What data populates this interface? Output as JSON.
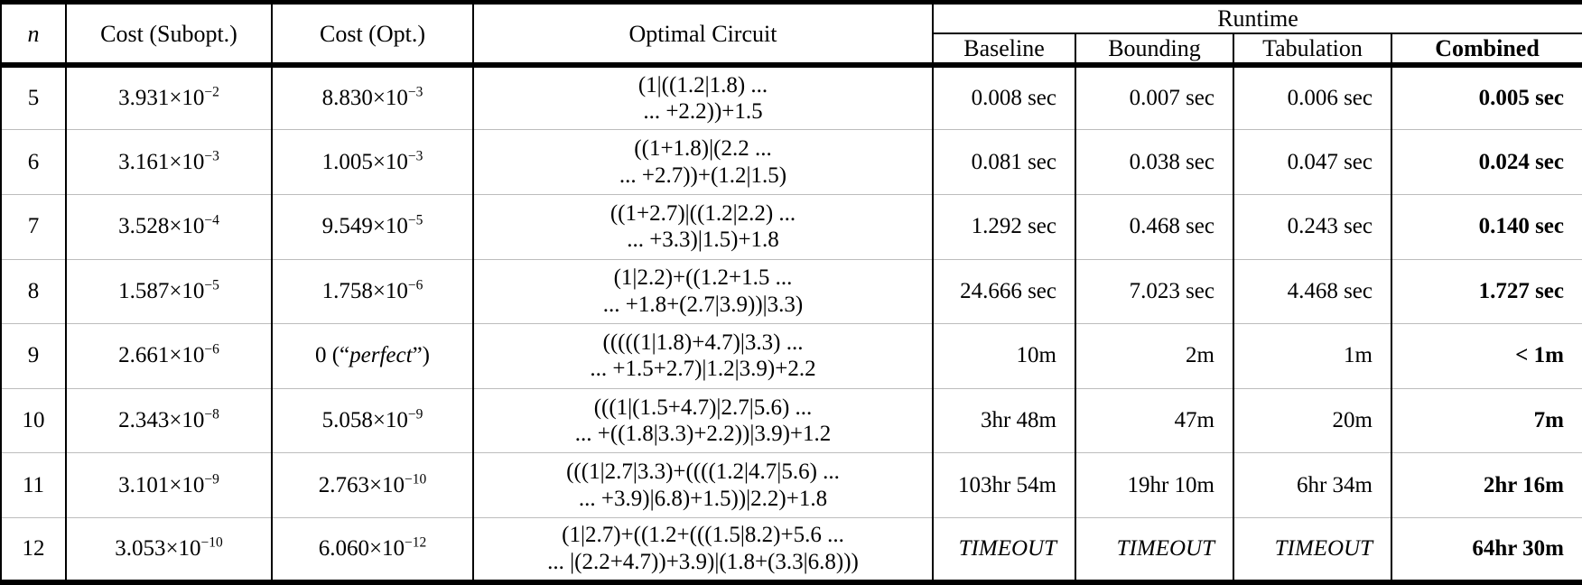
{
  "table": {
    "headers": {
      "n": "n",
      "cost_subopt": "Cost (Subopt.)",
      "cost_opt": "Cost (Opt.)",
      "optimal_circuit": "Optimal Circuit",
      "runtime_group": "Runtime",
      "runtime_columns": [
        "Baseline",
        "Bounding",
        "Tabulation",
        "Combined"
      ]
    },
    "rows": [
      {
        "n": "5",
        "cost_subopt": [
          {
            "text": "3.931×10"
          },
          {
            "text": "−2",
            "sup": true
          }
        ],
        "cost_opt": [
          {
            "text": "8.830×10"
          },
          {
            "text": "−3",
            "sup": true
          }
        ],
        "circuit": [
          "(1|((1.2|1.8) ...",
          "... +2.2))+1.5"
        ],
        "runtime": [
          "0.008 sec",
          "0.007 sec",
          "0.006 sec",
          "0.005 sec"
        ]
      },
      {
        "n": "6",
        "cost_subopt": [
          {
            "text": "3.161×10"
          },
          {
            "text": "−3",
            "sup": true
          }
        ],
        "cost_opt": [
          {
            "text": "1.005×10"
          },
          {
            "text": "−3",
            "sup": true
          }
        ],
        "circuit": [
          "((1+1.8)|(2.2 ...",
          "... +2.7))+(1.2|1.5)"
        ],
        "runtime": [
          "0.081 sec",
          "0.038 sec",
          "0.047 sec",
          "0.024 sec"
        ]
      },
      {
        "n": "7",
        "cost_subopt": [
          {
            "text": "3.528×10"
          },
          {
            "text": "−4",
            "sup": true
          }
        ],
        "cost_opt": [
          {
            "text": "9.549×10"
          },
          {
            "text": "−5",
            "sup": true
          }
        ],
        "circuit": [
          "((1+2.7)|((1.2|2.2) ...",
          "... +3.3)|1.5)+1.8"
        ],
        "runtime": [
          "1.292 sec",
          "0.468 sec",
          "0.243 sec",
          "0.140 sec"
        ]
      },
      {
        "n": "8",
        "cost_subopt": [
          {
            "text": "1.587×10"
          },
          {
            "text": "−5",
            "sup": true
          }
        ],
        "cost_opt": [
          {
            "text": "1.758×10"
          },
          {
            "text": "−6",
            "sup": true
          }
        ],
        "circuit": [
          "(1|2.2)+((1.2+1.5 ...",
          "... +1.8+(2.7|3.9))|3.3)"
        ],
        "runtime": [
          "24.666 sec",
          "7.023 sec",
          "4.468 sec",
          "1.727 sec"
        ]
      },
      {
        "n": "9",
        "cost_subopt": [
          {
            "text": "2.661×10"
          },
          {
            "text": "−6",
            "sup": true
          }
        ],
        "cost_opt": [
          {
            "text": "0 (“"
          },
          {
            "text": "perfect",
            "italic": true
          },
          {
            "text": "”)"
          }
        ],
        "circuit": [
          "(((((1|1.8)+4.7)|3.3) ...",
          "... +1.5+2.7)|1.2|3.9)+2.2"
        ],
        "runtime": [
          "10m",
          "2m",
          "1m",
          "< 1m"
        ]
      },
      {
        "n": "10",
        "cost_subopt": [
          {
            "text": "2.343×10"
          },
          {
            "text": "−8",
            "sup": true
          }
        ],
        "cost_opt": [
          {
            "text": "5.058×10"
          },
          {
            "text": "−9",
            "sup": true
          }
        ],
        "circuit": [
          "(((1|(1.5+4.7)|2.7|5.6) ...",
          "... +((1.8|3.3)+2.2))|3.9)+1.2"
        ],
        "runtime": [
          "3hr 48m",
          "47m",
          "20m",
          "7m"
        ]
      },
      {
        "n": "11",
        "cost_subopt": [
          {
            "text": "3.101×10"
          },
          {
            "text": "−9",
            "sup": true
          }
        ],
        "cost_opt": [
          {
            "text": "2.763×10"
          },
          {
            "text": "−10",
            "sup": true
          }
        ],
        "circuit": [
          "(((1|2.7|3.3)+((((1.2|4.7|5.6) ...",
          "... +3.9)|6.8)+1.5))|2.2)+1.8"
        ],
        "runtime": [
          "103hr 54m",
          "19hr 10m",
          "6hr 34m",
          "2hr 16m"
        ]
      },
      {
        "n": "12",
        "cost_subopt": [
          {
            "text": "3.053×10"
          },
          {
            "text": "−10",
            "sup": true
          }
        ],
        "cost_opt": [
          {
            "text": "6.060×10"
          },
          {
            "text": "−12",
            "sup": true
          }
        ],
        "circuit": [
          "(1|2.7)+((1.2+(((1.5|8.2)+5.6 ...",
          "... |(2.2+4.7))+3.9)|(1.8+(3.3|6.8)))"
        ],
        "runtime": [
          "TIMEOUT",
          "TIMEOUT",
          "TIMEOUT",
          "64hr 30m"
        ]
      }
    ]
  }
}
